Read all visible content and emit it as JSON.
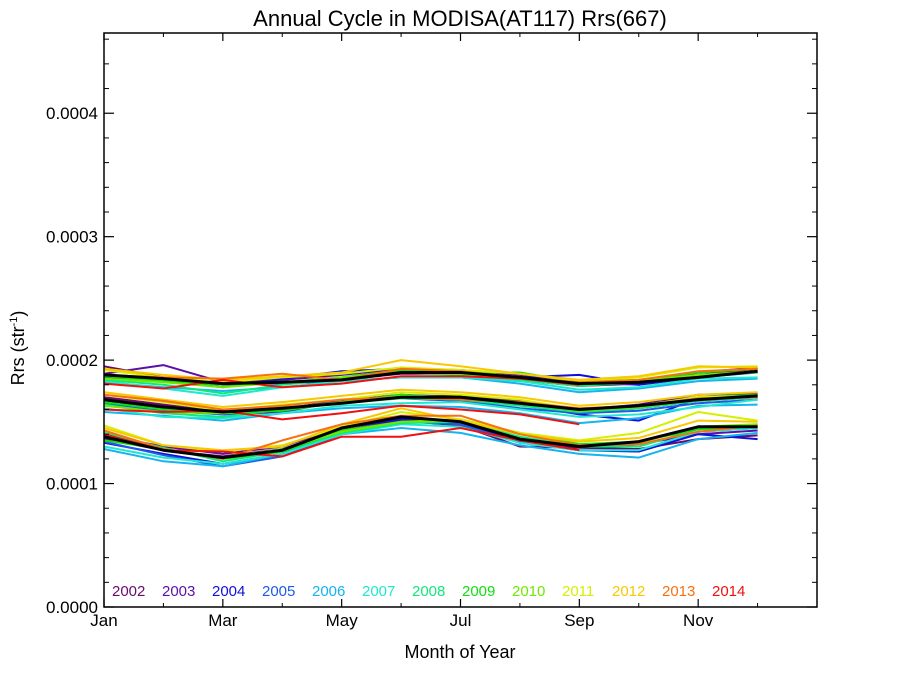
{
  "chart_data": {
    "type": "line",
    "title": "Annual Cycle in MODISA(AT117) Rrs(667)",
    "xlabel": "Month of Year",
    "ylabel": "Rrs (str",
    "ylabel_sup": "-1",
    "ylabel_tail": ")",
    "xlim": [
      1,
      13
    ],
    "ylim": [
      0.0,
      0.000465
    ],
    "x_ticks": [
      1,
      3,
      5,
      7,
      9,
      11
    ],
    "x_tick_labels": [
      "Jan",
      "Mar",
      "May",
      "Jul",
      "Sep",
      "Nov"
    ],
    "y_ticks": [
      0.0,
      0.0001,
      0.0002,
      0.0003,
      0.0004
    ],
    "y_tick_labels": [
      "0.0000",
      "0.0001",
      "0.0002",
      "0.0003",
      "0.0004"
    ],
    "x": [
      1,
      2,
      3,
      4,
      5,
      6,
      7,
      8,
      9,
      10,
      11,
      12
    ],
    "legend_position": "bottom-left inside plot",
    "series": [
      {
        "name": "2002",
        "color": "#6a0a6a",
        "upper": [
          0.000195,
          0.000186,
          0.000181,
          0.000182,
          0.000184,
          0.000189,
          0.000189,
          0.000184,
          0.000179,
          0.000181,
          0.000188,
          0.000193
        ],
        "middle": [
          0.00017,
          0.000164,
          0.000158,
          0.000161,
          0.000165,
          0.000171,
          0.000171,
          0.000167,
          0.000158,
          0.000161,
          0.000167,
          0.00017
        ],
        "lower": [
          0.000136,
          0.000127,
          0.000122,
          0.000128,
          0.000143,
          0.000151,
          0.000147,
          0.00013,
          0.000129,
          0.000128,
          0.000136,
          0.000139
        ]
      },
      {
        "name": "2003",
        "color": "#5a10a8",
        "upper": [
          0.000189,
          0.000196,
          0.000182,
          0.000184,
          0.000188,
          0.000193,
          0.000192,
          0.000188,
          0.000182,
          0.00018,
          0.00019,
          0.000194
        ],
        "middle": [
          0.000168,
          0.00016,
          0.000156,
          0.000158,
          0.000167,
          0.000172,
          0.00017,
          0.000165,
          0.00016,
          0.000164,
          0.000172,
          0.000173
        ],
        "lower": [
          0.000139,
          0.00013,
          0.000124,
          0.00013,
          0.000146,
          0.000153,
          0.00015,
          0.000133,
          0.00013,
          0.000132,
          0.00014,
          0.000143
        ]
      },
      {
        "name": "2004",
        "color": "#1010d8",
        "upper": [
          0.000186,
          0.000183,
          0.000178,
          0.000185,
          0.000191,
          0.000193,
          0.00019,
          0.000186,
          0.000188,
          0.00018,
          0.000186,
          0.000191
        ],
        "middle": [
          0.000166,
          0.000162,
          0.000157,
          0.00016,
          0.000168,
          0.000169,
          0.000167,
          0.000164,
          0.000156,
          0.000151,
          0.000169,
          0.000172
        ],
        "lower": [
          0.000133,
          0.000124,
          0.000116,
          0.000124,
          0.000145,
          0.000152,
          0.000148,
          0.000134,
          0.000127,
          0.000126,
          0.00014,
          0.000136
        ]
      },
      {
        "name": "2005",
        "color": "#1e5ae8",
        "upper": [
          0.000188,
          0.000184,
          0.00018,
          0.000181,
          0.000183,
          0.000186,
          0.000186,
          0.000183,
          0.000181,
          0.000182,
          0.000186,
          0.00019
        ],
        "middle": [
          0.000165,
          0.000159,
          0.000156,
          0.00016,
          0.000165,
          0.00017,
          0.000167,
          0.000161,
          0.000157,
          0.000159,
          0.000165,
          0.000168
        ],
        "lower": [
          0.000134,
          0.000123,
          0.000114,
          0.000122,
          0.00014,
          0.00015,
          0.000148,
          0.000133,
          0.000127,
          0.000127,
          0.000142,
          0.000145
        ]
      },
      {
        "name": "2006",
        "color": "#14b4f0",
        "upper": [
          0.000182,
          0.000178,
          0.000175,
          0.000178,
          0.000183,
          0.000186,
          0.000186,
          0.000181,
          0.000174,
          0.000177,
          0.000183,
          0.000185
        ],
        "middle": [
          0.000158,
          0.000155,
          0.000151,
          0.000157,
          0.000161,
          0.000163,
          0.000162,
          0.000157,
          0.000149,
          0.000153,
          0.000163,
          0.000164
        ],
        "lower": [
          0.000128,
          0.000118,
          0.000114,
          0.000124,
          0.00014,
          0.000145,
          0.000141,
          0.000131,
          0.000124,
          0.000121,
          0.000136,
          0.000141
        ]
      },
      {
        "name": "2007",
        "color": "#20e8d0",
        "upper": [
          0.000183,
          0.000177,
          0.000171,
          0.000178,
          0.000183,
          0.000186,
          0.000186,
          0.000183,
          0.000176,
          0.000178,
          0.000185,
          0.000186
        ],
        "middle": [
          0.000161,
          0.000154,
          0.000153,
          0.000157,
          0.000163,
          0.000165,
          0.000166,
          0.00016,
          0.000154,
          0.000156,
          0.000162,
          0.000168
        ],
        "lower": [
          0.00013,
          0.000121,
          0.000116,
          0.000124,
          0.00014,
          0.000148,
          0.000146,
          0.000133,
          0.000127,
          0.000127,
          0.000142,
          0.000145
        ]
      },
      {
        "name": "2008",
        "color": "#10e878",
        "upper": [
          0.000184,
          0.00018,
          0.000173,
          0.00018,
          0.000185,
          0.00019,
          0.000188,
          0.000184,
          0.000179,
          0.000182,
          0.000187,
          0.00019
        ],
        "middle": [
          0.000164,
          0.000157,
          0.000154,
          0.00016,
          0.000165,
          0.000169,
          0.000168,
          0.000163,
          0.000158,
          0.000161,
          0.000167,
          0.00017
        ],
        "lower": [
          0.000141,
          0.000129,
          0.000118,
          0.000126,
          0.000141,
          0.000149,
          0.00015,
          0.000138,
          0.00013,
          0.00013,
          0.000144,
          0.000146
        ]
      },
      {
        "name": "2009",
        "color": "#10e010",
        "upper": [
          0.000187,
          0.000183,
          0.00018,
          0.000182,
          0.000186,
          0.000192,
          0.00019,
          0.00019,
          0.000182,
          0.000184,
          0.00019,
          0.000193
        ],
        "middle": [
          0.000166,
          0.00016,
          0.000157,
          0.000159,
          0.000166,
          0.000172,
          0.000169,
          0.000166,
          0.00016,
          0.000163,
          0.00017,
          0.000172
        ],
        "lower": [
          0.000135,
          0.000128,
          0.00012,
          0.000126,
          0.000143,
          0.00015,
          0.000152,
          0.000141,
          0.000132,
          0.000134,
          0.000144,
          0.000147
        ]
      },
      {
        "name": "2010",
        "color": "#70e800",
        "upper": [
          0.000185,
          0.000182,
          0.000178,
          0.000182,
          0.000186,
          0.00019,
          0.000189,
          0.000186,
          0.000181,
          0.000183,
          0.000188,
          0.000191
        ],
        "middle": [
          0.000163,
          0.000158,
          0.000157,
          0.000161,
          0.000166,
          0.000171,
          0.00017,
          0.000165,
          0.000159,
          0.000162,
          0.000168,
          0.000171
        ],
        "lower": [
          0.000138,
          0.000128,
          0.000121,
          0.000128,
          0.000142,
          0.00015,
          0.000151,
          0.00014,
          0.000131,
          0.000133,
          0.000146,
          0.000148
        ]
      },
      {
        "name": "2011",
        "color": "#d4f000",
        "upper": [
          0.000192,
          0.000186,
          0.000182,
          0.000186,
          0.000189,
          0.000194,
          0.000192,
          0.000189,
          0.000183,
          0.000186,
          0.000194,
          0.000195
        ],
        "middle": [
          0.000172,
          0.000166,
          0.000159,
          0.000164,
          0.000168,
          0.000174,
          0.000172,
          0.000168,
          0.00016,
          0.000163,
          0.00017,
          0.000171
        ],
        "lower": [
          0.000147,
          0.000131,
          0.000126,
          0.000131,
          0.000146,
          0.000158,
          0.000152,
          0.000141,
          0.000135,
          0.000141,
          0.000158,
          0.000151
        ]
      },
      {
        "name": "2012",
        "color": "#f8c800",
        "upper": [
          0.000193,
          0.000188,
          0.000184,
          0.000187,
          0.00019,
          0.0002,
          0.000195,
          0.000189,
          0.000184,
          0.000187,
          0.000195,
          0.000194
        ],
        "middle": [
          0.000174,
          0.000168,
          0.000162,
          0.000166,
          0.000171,
          0.000176,
          0.000174,
          0.00017,
          0.000163,
          0.000166,
          0.000172,
          0.000174
        ],
        "lower": [
          0.000145,
          0.000131,
          0.000127,
          0.00013,
          0.000148,
          0.000161,
          0.000151,
          0.00014,
          0.000134,
          0.000137,
          0.000151,
          0.00015
        ]
      },
      {
        "name": "2013",
        "color": "#f87010",
        "upper": [
          0.000188,
          0.000186,
          0.000185,
          0.000189,
          0.000184,
          0.000193,
          0.000191,
          0.000186,
          0.000182,
          0.000184,
          0.000191,
          0.000193
        ],
        "middle": [
          0.000172,
          0.000167,
          0.00016,
          0.000163,
          0.000168,
          0.00017,
          0.000168,
          0.000166,
          0.000161,
          0.000163,
          0.000169,
          0.00017
        ],
        "lower": [
          0.000143,
          0.000128,
          0.00012,
          0.000135,
          0.000148,
          0.000155,
          0.000155,
          0.00014,
          0.000131,
          0.000132,
          0.000142,
          0.000147
        ]
      },
      {
        "name": "2014",
        "color": "#f01010",
        "upper": [
          0.000181,
          0.000177,
          0.000184,
          0.000178,
          0.000181,
          0.000187,
          0.000187,
          0.000185,
          0.00018
        ],
        "middle": [
          0.00016,
          0.000158,
          0.000159,
          0.000152,
          0.000157,
          0.000163,
          0.00016,
          0.000156,
          0.000148
        ],
        "lower": [
          0.00014,
          0.000127,
          0.000126,
          0.000122,
          0.000138,
          0.000138,
          0.000145,
          0.000135,
          0.000127
        ]
      }
    ],
    "mean_series": {
      "color": "#000000",
      "upper": [
        0.000188,
        0.000185,
        0.000181,
        0.000182,
        0.000184,
        0.00019,
        0.00019,
        0.000186,
        0.000181,
        0.000182,
        0.000186,
        0.000191
      ],
      "middle": [
        0.000168,
        0.000162,
        0.000158,
        0.000161,
        0.000165,
        0.00017,
        0.00017,
        0.000165,
        0.00016,
        0.000163,
        0.000168,
        0.000171
      ],
      "lower": [
        0.000138,
        0.000127,
        0.000121,
        0.000127,
        0.000145,
        0.000154,
        0.00015,
        0.000136,
        0.00013,
        0.000134,
        0.000146,
        0.000146
      ]
    }
  }
}
